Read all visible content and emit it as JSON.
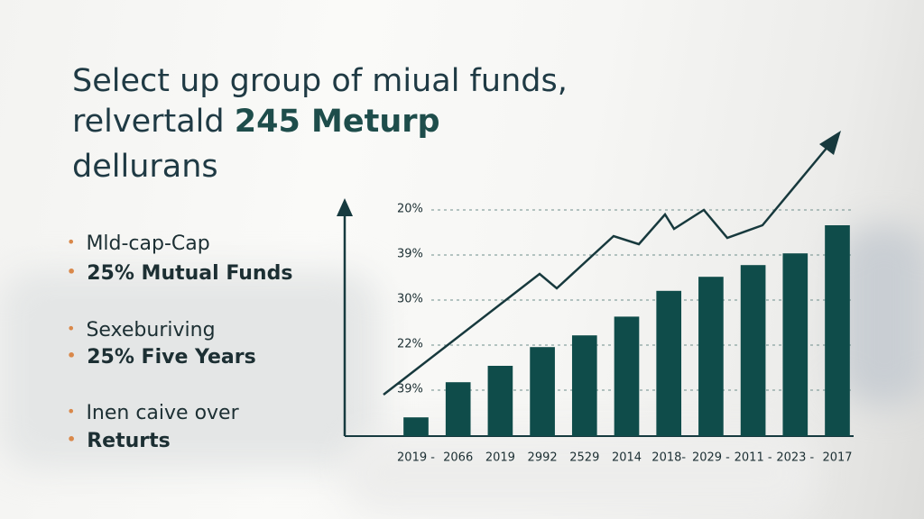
{
  "header": {
    "line1": "Select up group of miual funds,",
    "line2": "relvertald",
    "line2_bold": "245 Meturp",
    "line3": "dellurans"
  },
  "bullets": [
    {
      "items": [
        "Mld-cap-Cap",
        "25% Mutual Funds"
      ]
    },
    {
      "items": [
        "Sexeburiving",
        "25% Five Years"
      ]
    },
    {
      "items": [
        "Inen caive over",
        "Returts"
      ]
    }
  ],
  "chart_data": {
    "type": "bar",
    "categories": [
      "2019 -",
      "2066",
      "2019",
      "2992",
      "2529",
      "2014",
      "2018-",
      "2029 -",
      "2011 -",
      "2023 -",
      "2017"
    ],
    "values": [
      8,
      23,
      30,
      38,
      43,
      51,
      62,
      68,
      73,
      78,
      90
    ],
    "color": "#0f4c4a",
    "ylim": [
      0,
      100
    ],
    "grid_labels": [
      "20%",
      "39%",
      "30%",
      "22%",
      "39%"
    ],
    "grid": true
  }
}
